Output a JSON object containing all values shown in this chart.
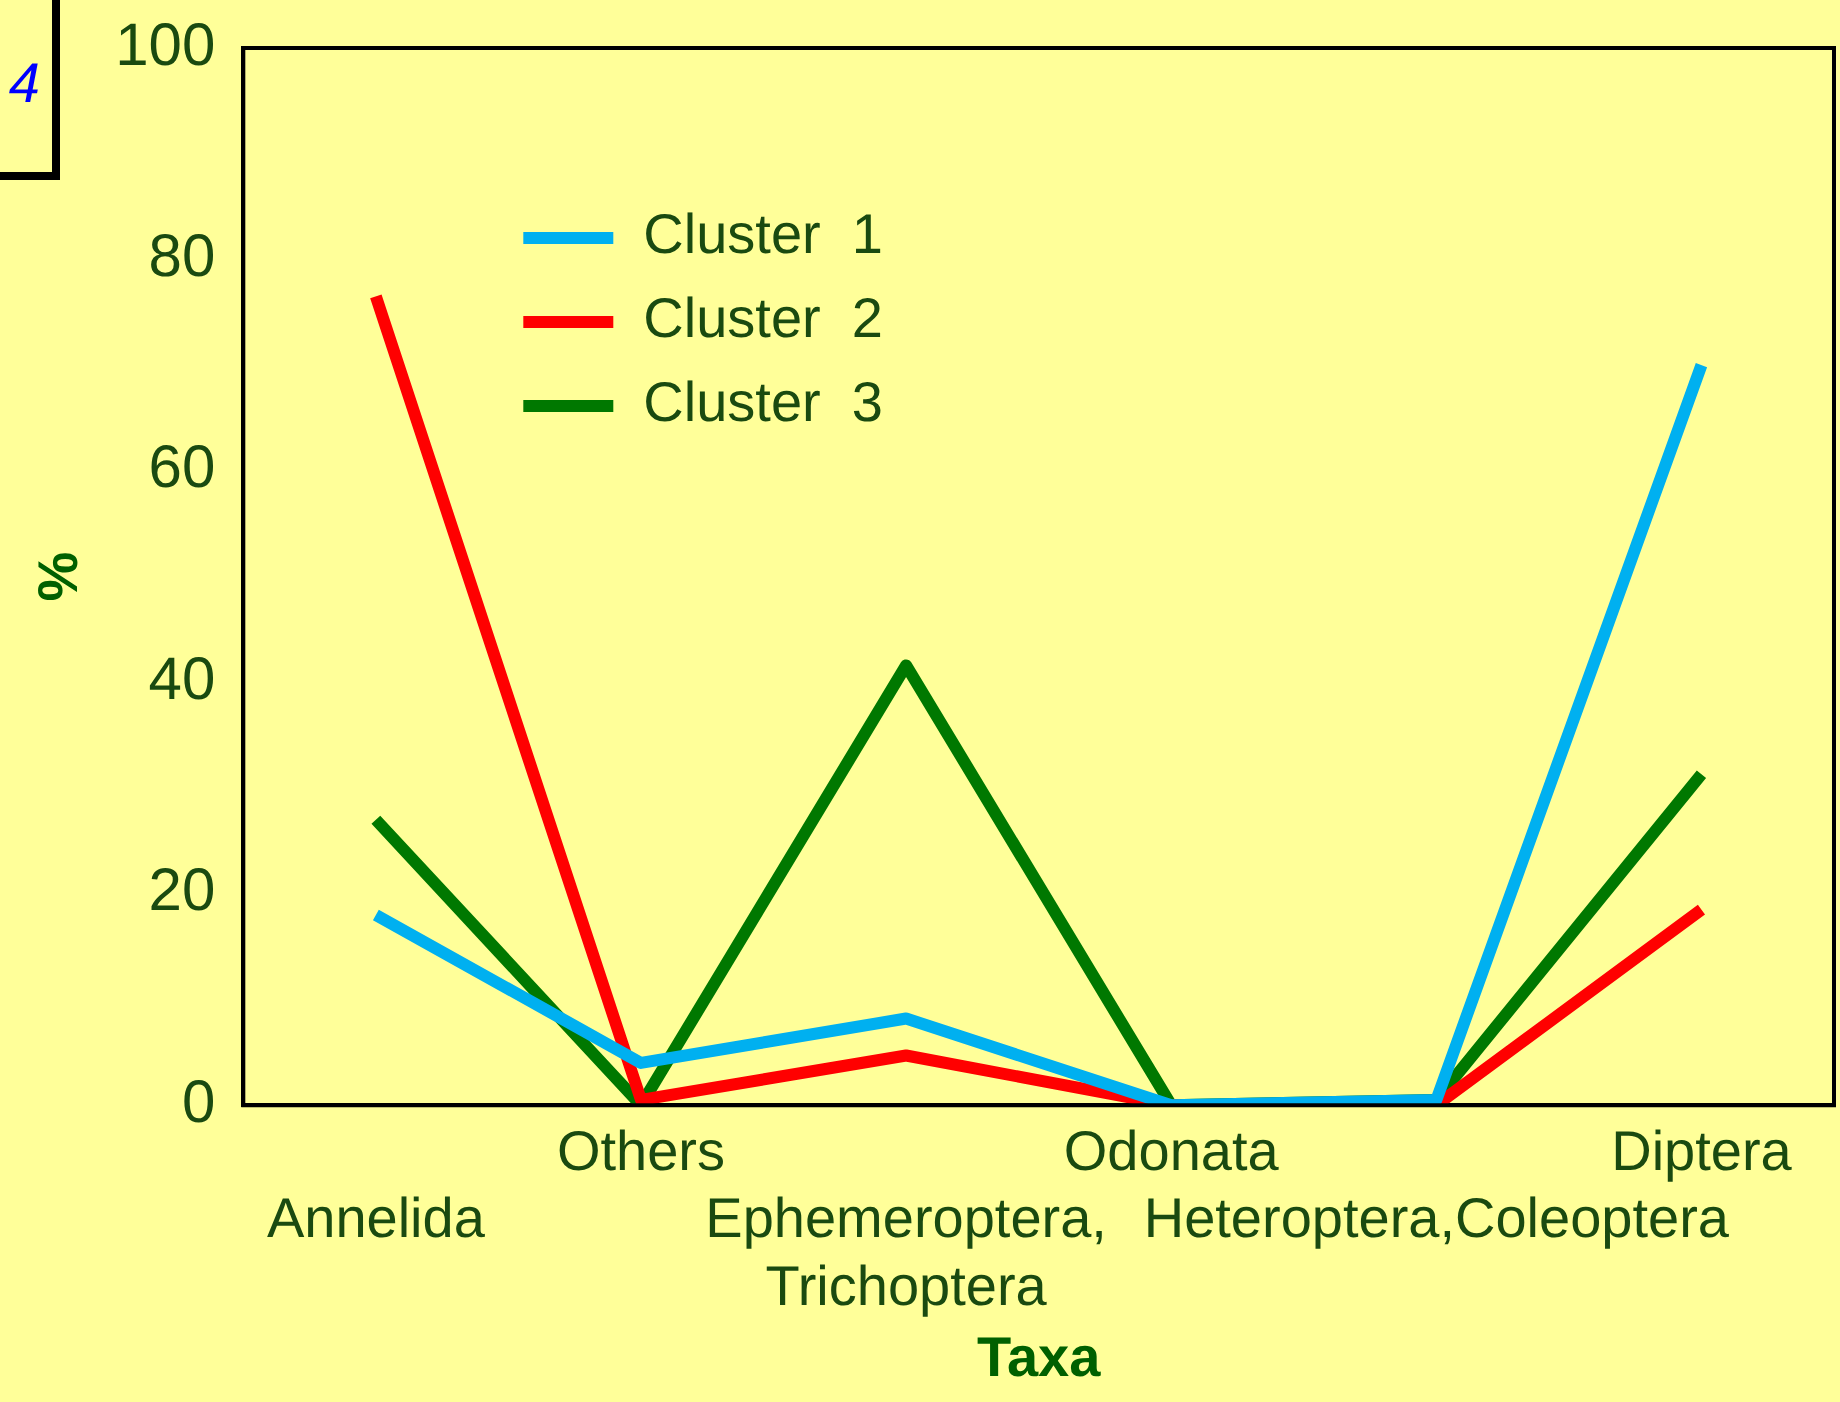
{
  "chart_data": {
    "type": "line",
    "xlabel": "Taxa",
    "ylabel": "%",
    "categories": [
      "Annelida",
      "Others",
      "Ephemeroptera, Trichoptera",
      "Odonata",
      "Heteroptera,Coleoptera",
      "Diptera"
    ],
    "series": [
      {
        "name": "Cluster  1",
        "color": "#00b0f0",
        "values": [
          18,
          4,
          8.2,
          0,
          0.5,
          70
        ]
      },
      {
        "name": "Cluster  2",
        "color": "#ff0000",
        "values": [
          76.5,
          0.5,
          4.7,
          0,
          0,
          18.5
        ]
      },
      {
        "name": "Cluster  3",
        "color": "#007800",
        "values": [
          27,
          0,
          41.6,
          0,
          0.5,
          31.3
        ]
      }
    ],
    "ylim": [
      0,
      100
    ],
    "yticks": [
      0,
      20,
      40,
      60,
      80,
      100
    ],
    "grid": false,
    "legend": "top left",
    "marker": "none",
    "line_style": "solid",
    "annotations": [
      "4"
    ]
  }
}
